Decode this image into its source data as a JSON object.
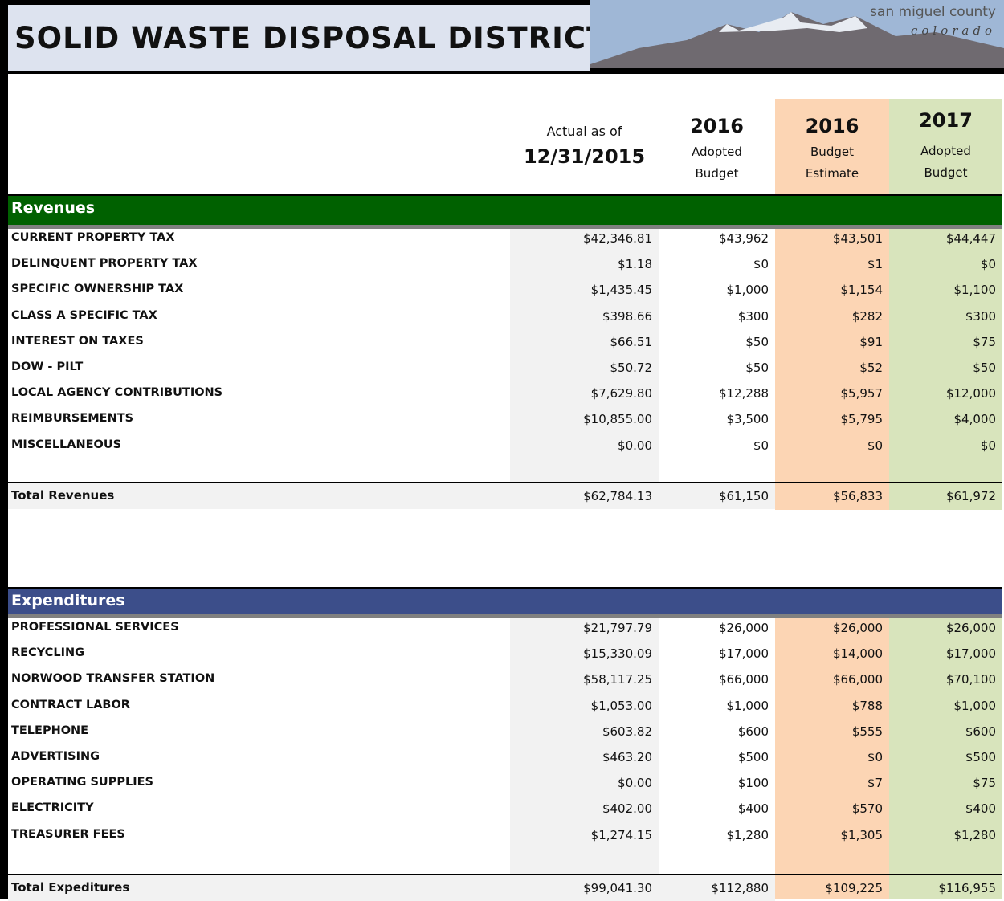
{
  "header": {
    "title": "SOLID WASTE DISPOSAL DISTRICT",
    "logo_line1": "san miguel county",
    "logo_line2": "colorado"
  },
  "columns": [
    [
      "Actual as of",
      "12/31/2015"
    ],
    [
      "2016",
      "Adopted",
      "Budget"
    ],
    [
      "2016",
      "Budget",
      "Estimate"
    ],
    [
      "2017",
      "Adopted",
      "Budget"
    ]
  ],
  "sections": [
    {
      "title": "Revenues",
      "rows": [
        [
          "CURRENT PROPERTY TAX",
          "$42,346.81",
          "$43,962",
          "$43,501",
          "$44,447"
        ],
        [
          "DELINQUENT PROPERTY TAX",
          "$1.18",
          "$0",
          "$1",
          "$0"
        ],
        [
          "SPECIFIC OWNERSHIP TAX",
          "$1,435.45",
          "$1,000",
          "$1,154",
          "$1,100"
        ],
        [
          "CLASS A SPECIFIC TAX",
          "$398.66",
          "$300",
          "$282",
          "$300"
        ],
        [
          "INTEREST ON TAXES",
          "$66.51",
          "$50",
          "$91",
          "$75"
        ],
        [
          "DOW - PILT",
          "$50.72",
          "$50",
          "$52",
          "$50"
        ],
        [
          "LOCAL AGENCY CONTRIBUTIONS",
          "$7,629.80",
          "$12,288",
          "$5,957",
          "$12,000"
        ],
        [
          "REIMBURSEMENTS",
          "$10,855.00",
          "$3,500",
          "$5,795",
          "$4,000"
        ],
        [
          "MISCELLANEOUS",
          "$0.00",
          "$0",
          "$0",
          "$0"
        ]
      ],
      "total": [
        "Total Revenues",
        "$62,784.13",
        "$61,150",
        "$56,833",
        "$61,972"
      ]
    },
    {
      "title": "Expenditures",
      "rows": [
        [
          "PROFESSIONAL SERVICES",
          "$21,797.79",
          "$26,000",
          "$26,000",
          "$26,000"
        ],
        [
          "RECYCLING",
          "$15,330.09",
          "$17,000",
          "$14,000",
          "$17,000"
        ],
        [
          "NORWOOD TRANSFER STATION",
          "$58,117.25",
          "$66,000",
          "$66,000",
          "$70,100"
        ],
        [
          "CONTRACT LABOR",
          "$1,053.00",
          "$1,000",
          "$788",
          "$1,000"
        ],
        [
          "TELEPHONE",
          "$603.82",
          "$600",
          "$555",
          "$600"
        ],
        [
          "ADVERTISING",
          "$463.20",
          "$500",
          "$0",
          "$500"
        ],
        [
          "OPERATING SUPPLIES",
          "$0.00",
          "$100",
          "$7",
          "$75"
        ],
        [
          "ELECTRICITY",
          "$402.00",
          "$400",
          "$570",
          "$400"
        ],
        [
          "TREASURER FEES",
          "$1,274.15",
          "$1,280",
          "$1,305",
          "$1,280"
        ]
      ],
      "total": [
        "Total Expeditures",
        "$99,041.30",
        "$112,880",
        "$109,225",
        "$116,955"
      ]
    }
  ]
}
